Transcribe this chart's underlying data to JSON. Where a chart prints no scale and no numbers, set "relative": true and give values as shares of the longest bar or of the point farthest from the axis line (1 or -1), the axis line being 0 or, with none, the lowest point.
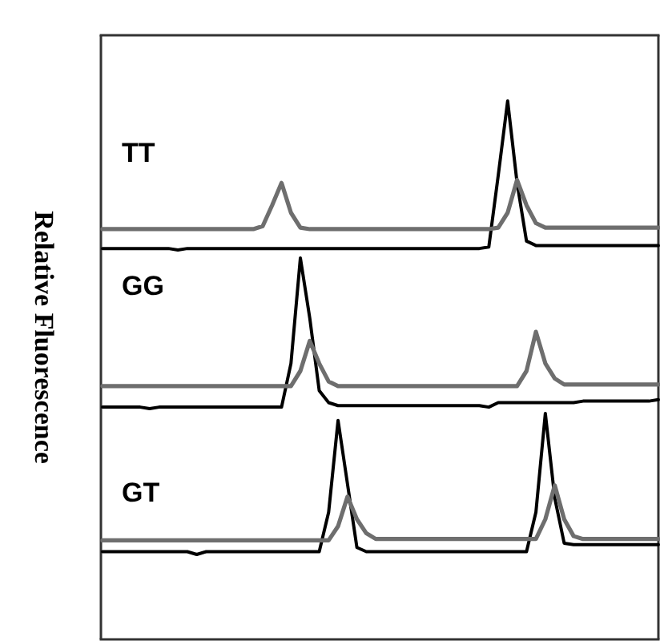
{
  "chart_data": [
    {
      "type": "line",
      "relative": true,
      "title": "TT",
      "ylabel": "Relative Fluorescence",
      "categories": [
        null,
        null,
        null,
        null,
        null,
        null,
        null,
        null,
        null,
        null,
        null,
        null,
        null,
        null,
        null,
        null,
        null,
        null,
        null,
        null,
        null,
        null,
        null,
        null,
        null,
        null,
        null,
        null,
        null,
        null,
        null,
        null,
        null,
        null,
        null,
        null,
        null,
        null,
        null,
        null,
        null,
        null,
        null,
        null,
        null,
        null,
        null,
        null,
        null,
        null,
        null,
        null,
        null,
        null,
        null,
        null,
        null,
        null,
        null,
        null
      ],
      "series": [
        {
          "color": "#000000",
          "values": [
            0.01,
            0.01,
            0.01,
            0.01,
            0.01,
            0.01,
            0.01,
            0.01,
            0,
            0.01,
            0.01,
            0.01,
            0.01,
            0.01,
            0.01,
            0.01,
            0.01,
            0.01,
            0.01,
            0.01,
            0.01,
            0.01,
            0.01,
            0.01,
            0.01,
            0.01,
            0.01,
            0.01,
            0.01,
            0.01,
            0.01,
            0.01,
            0.01,
            0.01,
            0.01,
            0.01,
            0.01,
            0.01,
            0.01,
            0.01,
            0.01,
            0.02,
            0.5,
            1,
            0.45,
            0.06,
            0.03,
            0.03,
            0.03,
            0.03,
            0.03,
            0.03,
            0.03,
            0.03,
            0.03,
            0.03,
            0.03,
            0.03,
            0.03,
            0.03
          ]
        },
        {
          "color": "#6e6e6e",
          "values": [
            0.14,
            0.14,
            0.14,
            0.14,
            0.14,
            0.14,
            0.14,
            0.14,
            0.14,
            0.14,
            0.14,
            0.14,
            0.14,
            0.14,
            0.14,
            0.14,
            0.14,
            0.16,
            0.3,
            0.45,
            0.25,
            0.15,
            0.14,
            0.14,
            0.14,
            0.14,
            0.14,
            0.14,
            0.14,
            0.14,
            0.14,
            0.14,
            0.14,
            0.14,
            0.14,
            0.14,
            0.14,
            0.14,
            0.14,
            0.14,
            0.14,
            0.14,
            0.15,
            0.25,
            0.47,
            0.3,
            0.18,
            0.15,
            0.15,
            0.15,
            0.15,
            0.15,
            0.15,
            0.15,
            0.15,
            0.15,
            0.15,
            0.15,
            0.15,
            0.15
          ]
        }
      ]
    },
    {
      "type": "line",
      "relative": true,
      "title": "GG",
      "categories": [
        null,
        null,
        null,
        null,
        null,
        null,
        null,
        null,
        null,
        null,
        null,
        null,
        null,
        null,
        null,
        null,
        null,
        null,
        null,
        null,
        null,
        null,
        null,
        null,
        null,
        null,
        null,
        null,
        null,
        null,
        null,
        null,
        null,
        null,
        null,
        null,
        null,
        null,
        null,
        null,
        null,
        null,
        null,
        null,
        null,
        null,
        null,
        null,
        null,
        null,
        null,
        null,
        null,
        null,
        null,
        null,
        null,
        null,
        null,
        null
      ],
      "series": [
        {
          "color": "#000000",
          "values": [
            0.01,
            0.01,
            0.01,
            0.01,
            0.01,
            0,
            0.01,
            0.01,
            0.01,
            0.01,
            0.01,
            0.01,
            0.01,
            0.01,
            0.01,
            0.01,
            0.01,
            0.01,
            0.01,
            0.01,
            0.3,
            1,
            0.6,
            0.12,
            0.04,
            0.02,
            0.02,
            0.02,
            0.02,
            0.02,
            0.02,
            0.02,
            0.02,
            0.02,
            0.02,
            0.02,
            0.02,
            0.02,
            0.02,
            0.02,
            0.02,
            0.01,
            0.04,
            0.04,
            0.04,
            0.04,
            0.04,
            0.04,
            0.04,
            0.04,
            0.04,
            0.05,
            0.05,
            0.05,
            0.05,
            0.05,
            0.05,
            0.05,
            0.05,
            0.06
          ]
        },
        {
          "color": "#6e6e6e",
          "values": [
            0.15,
            0.15,
            0.15,
            0.15,
            0.15,
            0.15,
            0.15,
            0.15,
            0.15,
            0.15,
            0.15,
            0.15,
            0.15,
            0.15,
            0.15,
            0.15,
            0.15,
            0.15,
            0.15,
            0.15,
            0.15,
            0.25,
            0.45,
            0.3,
            0.18,
            0.15,
            0.15,
            0.15,
            0.15,
            0.15,
            0.15,
            0.15,
            0.15,
            0.15,
            0.15,
            0.15,
            0.15,
            0.15,
            0.15,
            0.15,
            0.15,
            0.15,
            0.15,
            0.15,
            0.15,
            0.25,
            0.51,
            0.3,
            0.2,
            0.16,
            0.16,
            0.16,
            0.16,
            0.16,
            0.16,
            0.16,
            0.16,
            0.16,
            0.16,
            0.16
          ]
        }
      ]
    },
    {
      "type": "line",
      "relative": true,
      "title": "GT",
      "categories": [
        null,
        null,
        null,
        null,
        null,
        null,
        null,
        null,
        null,
        null,
        null,
        null,
        null,
        null,
        null,
        null,
        null,
        null,
        null,
        null,
        null,
        null,
        null,
        null,
        null,
        null,
        null,
        null,
        null,
        null,
        null,
        null,
        null,
        null,
        null,
        null,
        null,
        null,
        null,
        null,
        null,
        null,
        null,
        null,
        null,
        null,
        null,
        null,
        null,
        null,
        null,
        null,
        null,
        null,
        null,
        null,
        null,
        null,
        null,
        null
      ],
      "series": [
        {
          "color": "#000000",
          "values": [
            0.02,
            0.02,
            0.02,
            0.02,
            0.02,
            0.02,
            0.02,
            0.02,
            0.02,
            0.02,
            0,
            0.02,
            0.02,
            0.02,
            0.02,
            0.02,
            0.02,
            0.02,
            0.02,
            0.02,
            0.02,
            0.02,
            0.02,
            0.02,
            0.3,
            0.95,
            0.5,
            0.05,
            0.02,
            0.02,
            0.02,
            0.02,
            0.02,
            0.02,
            0.02,
            0.02,
            0.02,
            0.02,
            0.02,
            0.02,
            0.02,
            0.02,
            0.02,
            0.02,
            0.02,
            0.02,
            0.3,
            1,
            0.4,
            0.08,
            0.07,
            0.07,
            0.07,
            0.07,
            0.07,
            0.07,
            0.07,
            0.07,
            0.07,
            0.07
          ]
        },
        {
          "color": "#6e6e6e",
          "values": [
            0.1,
            0.1,
            0.1,
            0.1,
            0.1,
            0.1,
            0.1,
            0.1,
            0.1,
            0.1,
            0.1,
            0.1,
            0.1,
            0.1,
            0.1,
            0.1,
            0.1,
            0.1,
            0.1,
            0.1,
            0.1,
            0.1,
            0.1,
            0.1,
            0.1,
            0.2,
            0.41,
            0.25,
            0.15,
            0.11,
            0.11,
            0.11,
            0.11,
            0.11,
            0.11,
            0.11,
            0.11,
            0.11,
            0.11,
            0.11,
            0.11,
            0.11,
            0.11,
            0.11,
            0.11,
            0.11,
            0.11,
            0.25,
            0.49,
            0.25,
            0.13,
            0.11,
            0.11,
            0.11,
            0.11,
            0.11,
            0.11,
            0.11,
            0.11,
            0.11
          ]
        }
      ]
    }
  ]
}
